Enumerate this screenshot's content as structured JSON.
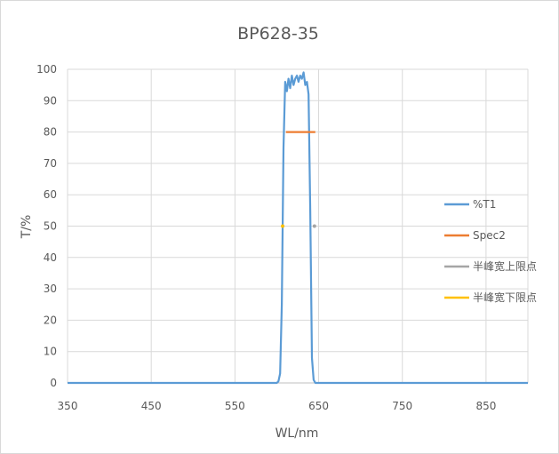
{
  "chart_data": {
    "type": "line",
    "title": "BP628-35",
    "xlabel": "WL/nm",
    "ylabel": "T/%",
    "xlim": [
      350,
      900
    ],
    "ylim": [
      0,
      100
    ],
    "x_ticks": [
      350,
      450,
      550,
      650,
      750,
      850
    ],
    "y_ticks": [
      0,
      10,
      20,
      30,
      40,
      50,
      60,
      70,
      80,
      90,
      100
    ],
    "grid": true,
    "legend_position": "right",
    "series": [
      {
        "name": "%T1",
        "color": "#5b9bd5",
        "x": [
          350,
          600,
          602,
          604,
          606,
          608,
          610,
          612,
          614,
          616,
          618,
          620,
          622,
          624,
          626,
          628,
          630,
          632,
          634,
          636,
          638,
          640,
          642,
          644,
          646,
          648,
          650,
          655,
          900
        ],
        "y": [
          0,
          0,
          0.5,
          3,
          25,
          75,
          96,
          93,
          97,
          94,
          98,
          95,
          97,
          98,
          96,
          98,
          97,
          99,
          95,
          96,
          92,
          55,
          8,
          1,
          0,
          0,
          0,
          0,
          0
        ]
      },
      {
        "name": "Spec2",
        "color": "#ed7d31",
        "x": [
          611,
          646
        ],
        "y": [
          80,
          80
        ]
      },
      {
        "name": "半峰宽上限点",
        "color": "#a5a5a5",
        "x": [
          645
        ],
        "y": [
          50
        ]
      },
      {
        "name": "半峰宽下限点",
        "color": "#ffc000",
        "x": [
          607
        ],
        "y": [
          50
        ]
      }
    ]
  }
}
